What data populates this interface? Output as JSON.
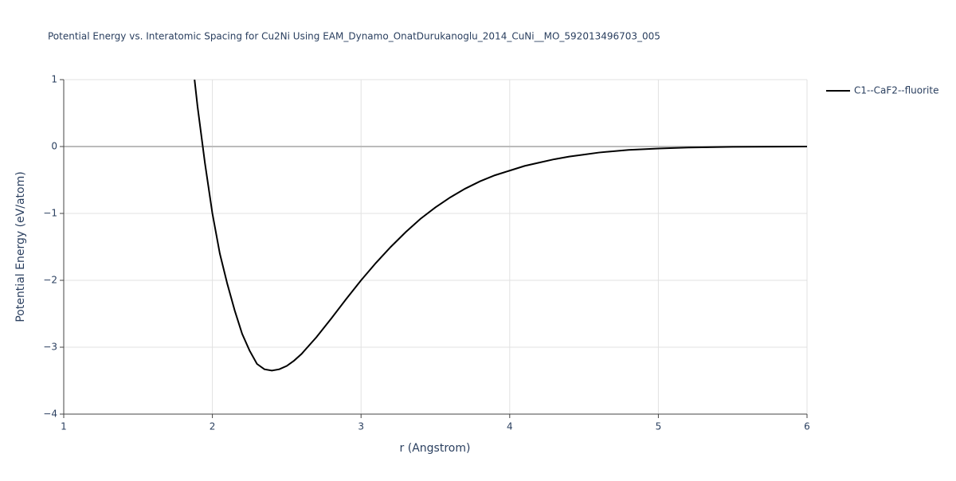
{
  "chart_data": {
    "type": "line",
    "title": "Potential Energy vs. Interatomic Spacing for Cu2Ni Using EAM_Dynamo_OnatDurukanoglu_2014_CuNi__MO_592013496703_005",
    "x_label": "r (Angstrom)",
    "y_label": "Potential Energy (eV/atom)",
    "xlim": [
      1,
      6
    ],
    "ylim": [
      -4,
      1
    ],
    "xticks": [
      1,
      2,
      3,
      4,
      5,
      6
    ],
    "yticks": [
      1,
      0,
      {
        "value": -1,
        "label": "−1"
      },
      {
        "value": -2,
        "label": "−2"
      },
      {
        "value": -3,
        "label": "−3"
      },
      {
        "value": -4,
        "label": "−4"
      }
    ],
    "grid": true,
    "legend": "top-right",
    "x": [
      1.88,
      1.9,
      1.95,
      2.0,
      2.05,
      2.1,
      2.15,
      2.2,
      2.25,
      2.3,
      2.35,
      2.4,
      2.45,
      2.5,
      2.55,
      2.6,
      2.7,
      2.8,
      2.9,
      3.0,
      3.1,
      3.2,
      3.3,
      3.4,
      3.5,
      3.6,
      3.7,
      3.8,
      3.9,
      4.0,
      4.1,
      4.2,
      4.3,
      4.4,
      4.5,
      4.6,
      4.8,
      5.0,
      5.2,
      5.5,
      6.0
    ],
    "series": [
      {
        "name": "C1--CaF2--fluorite",
        "color": "#000000",
        "values": [
          1.0,
          0.6,
          -0.25,
          -1.0,
          -1.6,
          -2.05,
          -2.45,
          -2.8,
          -3.05,
          -3.25,
          -3.33,
          -3.35,
          -3.33,
          -3.28,
          -3.2,
          -3.1,
          -2.85,
          -2.57,
          -2.28,
          -2.0,
          -1.74,
          -1.5,
          -1.28,
          -1.08,
          -0.91,
          -0.76,
          -0.63,
          -0.52,
          -0.43,
          -0.36,
          -0.29,
          -0.24,
          -0.19,
          -0.15,
          -0.12,
          -0.09,
          -0.05,
          -0.03,
          -0.015,
          -0.005,
          0
        ]
      }
    ]
  }
}
